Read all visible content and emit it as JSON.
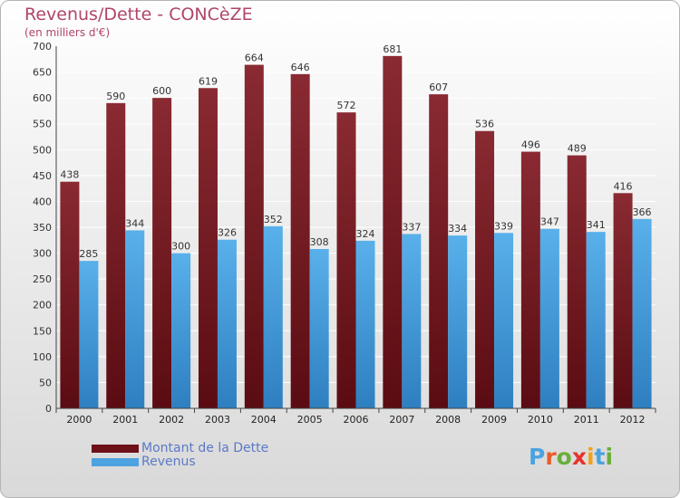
{
  "header": {
    "title": "Revenus/Dette - CONCèZE",
    "subtitle": "(en milliers d'€)"
  },
  "legend": {
    "debt_label": "Montant de la Dette",
    "revenue_label": "Revenus"
  },
  "logo": {
    "text": "Proxiti",
    "letters": [
      "P",
      "r",
      "o",
      "x",
      "i",
      "t",
      "i"
    ],
    "colors": [
      "#4aa3df",
      "#e85d2b",
      "#6aae3c",
      "#e6322b",
      "#f2a11b",
      "#4aa3df",
      "#6aae3c"
    ]
  },
  "colors": {
    "debt": "#7d2028",
    "revenue": "#4da3e0",
    "title": "#b0446a"
  },
  "chart_data": {
    "type": "bar",
    "title": "Revenus/Dette - CONCèZE",
    "subtitle": "(en milliers d'€)",
    "xlabel": "",
    "ylabel": "",
    "ylim": [
      0,
      700
    ],
    "yticks": [
      0,
      50,
      100,
      150,
      200,
      250,
      300,
      350,
      400,
      450,
      500,
      550,
      600,
      650,
      700
    ],
    "grid": true,
    "legend_position": "bottom-left",
    "categories": [
      "2000",
      "2001",
      "2002",
      "2003",
      "2004",
      "2005",
      "2006",
      "2007",
      "2008",
      "2009",
      "2010",
      "2011",
      "2012"
    ],
    "series": [
      {
        "name": "Montant de la Dette",
        "values": [
          438,
          590,
          600,
          619,
          664,
          646,
          572,
          681,
          607,
          536,
          496,
          489,
          416
        ]
      },
      {
        "name": "Revenus",
        "values": [
          285,
          344,
          300,
          326,
          352,
          308,
          324,
          337,
          334,
          339,
          347,
          341,
          366
        ]
      }
    ]
  }
}
